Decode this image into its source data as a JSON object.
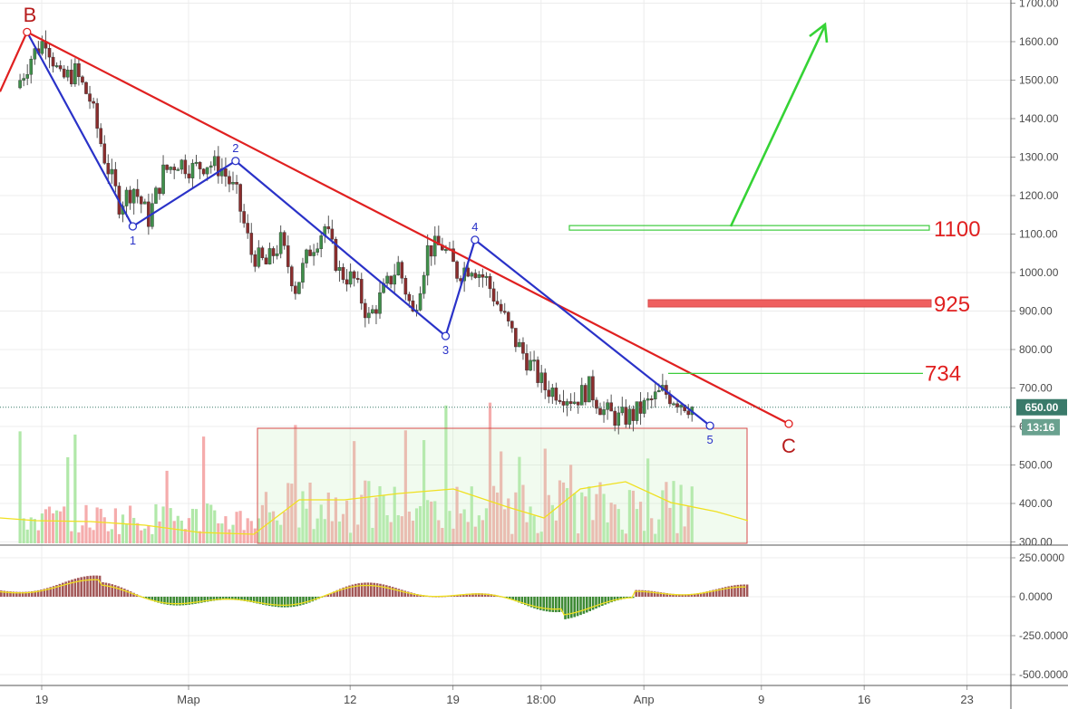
{
  "chart_data": [
    {
      "type": "candlestick",
      "title": "",
      "ylim": [
        290,
        1710
      ],
      "y_scale": "linear",
      "y_ticks": [
        {
          "value": 300,
          "label": "300.00"
        },
        {
          "value": 400,
          "label": "400.00"
        },
        {
          "value": 500,
          "label": "500.00"
        },
        {
          "value": 600,
          "label": "600.00"
        },
        {
          "value": 700,
          "label": "700.00"
        },
        {
          "value": 800,
          "label": "800.00"
        },
        {
          "value": 900,
          "label": "900.00"
        },
        {
          "value": 1000,
          "label": "1000.00"
        },
        {
          "value": 1100,
          "label": "1100.00"
        },
        {
          "value": 1200,
          "label": "1200.00"
        },
        {
          "value": 1300,
          "label": "1300.00"
        },
        {
          "value": 1400,
          "label": "1400.00"
        },
        {
          "value": 1500,
          "label": "1500.00"
        },
        {
          "value": 1600,
          "label": "1600.00"
        },
        {
          "value": 1700,
          "label": "1700.00"
        }
      ],
      "x_ticks": [
        {
          "label": "19",
          "day": 0
        },
        {
          "label": "Мар",
          "day": 10
        },
        {
          "label": "12",
          "day": 21
        },
        {
          "label": "19",
          "day": 28
        },
        {
          "label": "18:00",
          "day": 34
        },
        {
          "label": "Апр",
          "day": 41
        },
        {
          "label": "9",
          "day": 49
        },
        {
          "label": "16",
          "day": 56
        },
        {
          "label": "23",
          "day": 63
        }
      ],
      "grid": true,
      "current_price": {
        "label": "650.00",
        "value": 650,
        "countdown": "13:16"
      },
      "wave_points": [
        {
          "label": "B",
          "day": -1,
          "value": 1625,
          "color": "#c62828"
        },
        {
          "label": "1",
          "day": 6.2,
          "value": 1120,
          "color": "#2a32c8"
        },
        {
          "label": "2",
          "day": 13.2,
          "value": 1290,
          "color": "#2a32c8"
        },
        {
          "label": "3",
          "day": 27.5,
          "value": 835,
          "color": "#2a32c8"
        },
        {
          "label": "4",
          "day": 29.5,
          "value": 1085,
          "color": "#2a32c8"
        },
        {
          "label": "5",
          "day": 45.5,
          "value": 602,
          "color": "#2a32c8"
        },
        {
          "label": "C",
          "day": 53,
          "value": 610,
          "color": "#c62828"
        }
      ],
      "levels": [
        {
          "label": "1100",
          "value": 1115
        },
        {
          "label": "925",
          "value": 920
        },
        {
          "label": "734",
          "value": 738
        }
      ],
      "candles_daily_close": [
        1480,
        1560,
        1610,
        1500,
        1520,
        1450,
        1300,
        1180,
        1220,
        1140,
        1260,
        1290,
        1270,
        1285,
        1270,
        1200,
        1050,
        1020,
        1080,
        960,
        1060,
        1120,
        1000,
        980,
        880,
        950,
        1020,
        890,
        1060,
        1070,
        1000,
        1020,
        980,
        900,
        820,
        760,
        700,
        690,
        670,
        700,
        640,
        620,
        630,
        660,
        690,
        670,
        650
      ]
    },
    {
      "type": "bar",
      "title": "Volume",
      "description": "volume histogram overlaid at chart bottom with moving average"
    },
    {
      "type": "bar",
      "title": "MACD",
      "ylim": [
        -560,
        300
      ],
      "y_ticks": [
        {
          "value": 250,
          "label": "250.0000"
        },
        {
          "value": 0,
          "label": "0.0000"
        },
        {
          "value": -250,
          "label": "-250.0000"
        },
        {
          "value": -500,
          "label": "-500.0000"
        }
      ]
    }
  ]
}
